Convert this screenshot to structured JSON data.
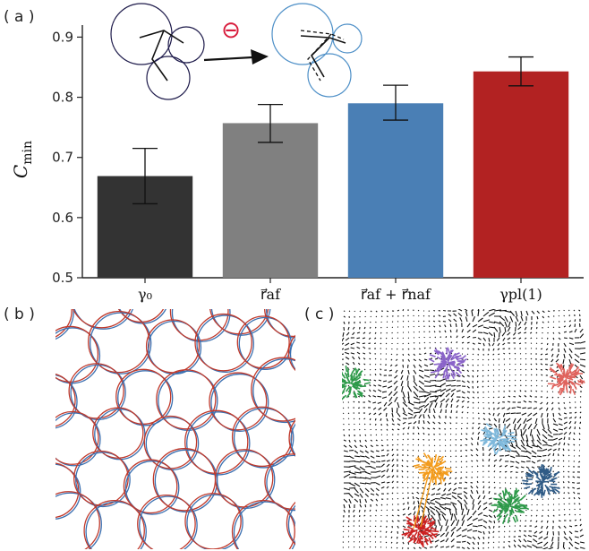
{
  "panels": {
    "a": "( a )",
    "b": "( b )",
    "c": "( c )"
  },
  "inset": {
    "symbol": "⊖",
    "symbol_color": "#d81b3b",
    "before_color": "#1e1b4b",
    "after_color": "#4d8fc7"
  },
  "chart_data": {
    "type": "bar",
    "categories": [
      "γ₀",
      "r⃗af",
      "r⃗af + r⃗naf",
      "γpl(1)"
    ],
    "values": [
      0.669,
      0.757,
      0.79,
      0.843
    ],
    "errors": [
      [
        0.623,
        0.715
      ],
      [
        0.725,
        0.788
      ],
      [
        0.762,
        0.82
      ],
      [
        0.819,
        0.867
      ]
    ],
    "colors": [
      "#333333",
      "#808080",
      "#4a7fb5",
      "#b22222"
    ],
    "ylabel": "C",
    "ylabel_sub": "min",
    "ylim": [
      0.5,
      0.92
    ],
    "yticks": [
      "0.5",
      "0.6",
      "0.7",
      "0.8",
      "0.9"
    ],
    "grid": false
  },
  "panel_b": {
    "ring_colors": [
      "#3a6fb0",
      "#c0392b"
    ]
  },
  "panel_c": {
    "cluster_colors": [
      "#8a63c9",
      "#e0645e",
      "#2e9a4a",
      "#7fb9dc",
      "#f39c1d",
      "#2f5b86",
      "#2e9a4a",
      "#cc2222"
    ]
  }
}
